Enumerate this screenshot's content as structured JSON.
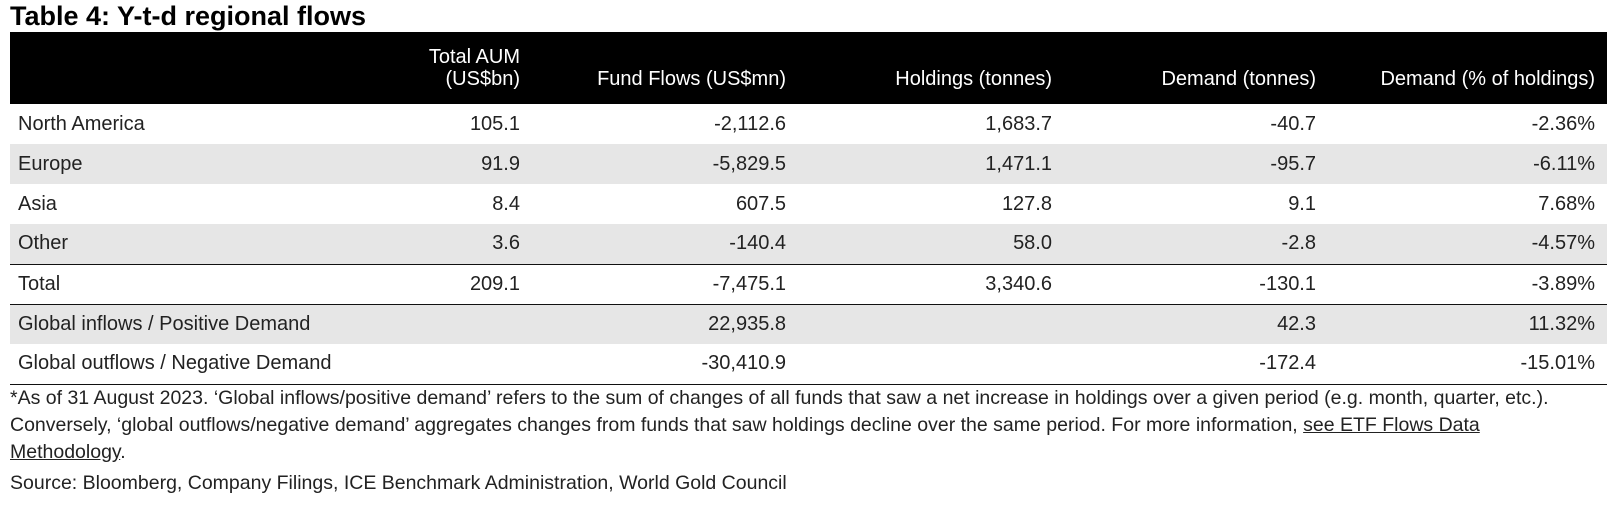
{
  "title": "Table 4: Y-t-d regional flows",
  "table": {
    "headers": [
      "",
      "Total AUM (US$bn)",
      "Fund Flows (US$mn)",
      "Holdings (tonnes)",
      "Demand (tonnes)",
      "Demand (% of holdings)"
    ],
    "rows": [
      {
        "cells": [
          "North America",
          "105.1",
          "-2,112.6",
          "1,683.7",
          "-40.7",
          "-2.36%"
        ]
      },
      {
        "cells": [
          "Europe",
          "91.9",
          "-5,829.5",
          "1,471.1",
          "-95.7",
          "-6.11%"
        ]
      },
      {
        "cells": [
          "Asia",
          "8.4",
          "607.5",
          "127.8",
          "9.1",
          "7.68%"
        ]
      },
      {
        "cells": [
          "Other",
          "3.6",
          "-140.4",
          "58.0",
          "-2.8",
          "-4.57%"
        ]
      },
      {
        "cells": [
          "Total",
          "209.1",
          "-7,475.1",
          "3,340.6",
          "-130.1",
          "-3.89%"
        ]
      },
      {
        "cells": [
          "Global inflows / Positive Demand",
          "",
          "22,935.8",
          "",
          "42.3",
          "11.32%"
        ]
      },
      {
        "cells": [
          "Global outflows / Negative Demand",
          "",
          "-30,410.9",
          "",
          "-172.4",
          "-15.01%"
        ]
      }
    ]
  },
  "footnote": {
    "text": "*As of 31 August 2023. ‘Global inflows/positive demand’ refers to the sum of changes of all funds that saw a net increase in holdings over a given period (e.g. month, quarter, etc.). Conversely, ‘global outflows/negative demand’ aggregates changes from funds that saw holdings decline over the same period. For more information, ",
    "link": "see ETF Flows Data Methodology",
    "end": "."
  },
  "source": "Source: Bloomberg, Company Filings, ICE Benchmark Administration, World Gold Council"
}
